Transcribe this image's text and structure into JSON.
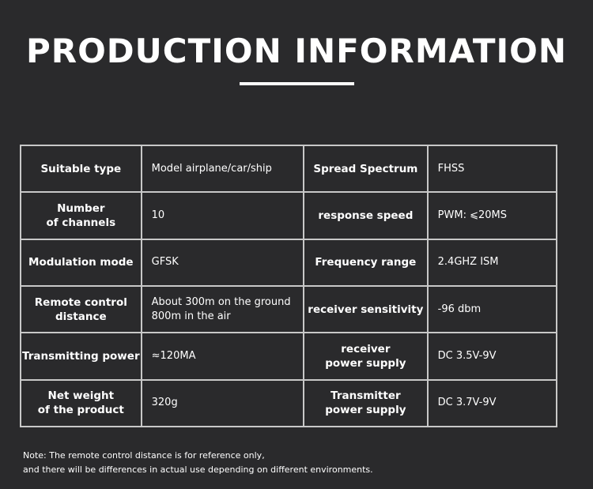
{
  "title": "PRODUCTION INFORMATION",
  "rows": [
    [
      "Suitable type",
      "Model airplane/car/ship",
      "Spread Spectrum",
      "FHSS"
    ],
    [
      "Number\nof channels",
      "10",
      "response speed",
      "PWM: ⩽20MS"
    ],
    [
      "Modulation mode",
      "GFSK",
      "Frequency range",
      "2.4GHZ  ISM"
    ],
    [
      "Remote control\ndistance",
      "About 300m on the ground\n800m in the air",
      "receiver sensitivity",
      "-96 dbm"
    ],
    [
      "Transmitting power",
      "≈120MA",
      "receiver\npower supply",
      "DC 3.5V-9V"
    ],
    [
      "Net weight\nof the product",
      "320g",
      "Transmitter\npower supply",
      "DC 3.7V-9V"
    ]
  ],
  "note": [
    "Note: The remote control distance is for reference only,",
    "and there will be differences in actual use depending on different environments."
  ]
}
